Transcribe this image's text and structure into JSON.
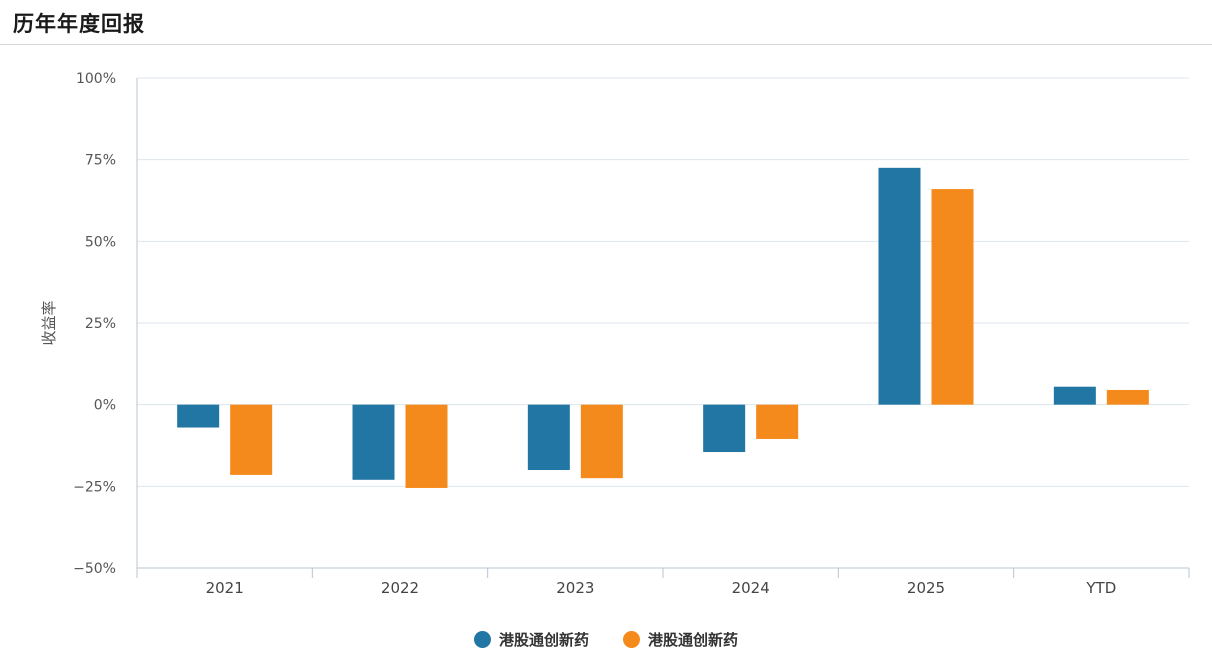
{
  "header": {
    "title": "历年年度回报"
  },
  "colors": {
    "series_1": "#2276a3",
    "series_2": "#f58a1c",
    "grid": "#dde5ec",
    "axis": "#b7c4d0"
  },
  "chart_data": {
    "type": "bar",
    "title": "历年年度回报",
    "xlabel": "",
    "ylabel": "收益率",
    "ylim": [
      -50,
      100
    ],
    "yticks": [
      -50,
      -25,
      0,
      25,
      50,
      75,
      100
    ],
    "ytick_labels": [
      "−50%",
      "−25%",
      "0%",
      "25%",
      "50%",
      "75%",
      "100%"
    ],
    "categories": [
      "2021",
      "2022",
      "2023",
      "2024",
      "2025",
      "YTD"
    ],
    "grid": true,
    "legend": "bottom-center",
    "series": [
      {
        "name": "港股通创新药",
        "color": "#2276a3",
        "values": [
          -7,
          -23,
          -20,
          -14.5,
          72.5,
          5.5
        ]
      },
      {
        "name": "港股通创新药",
        "color": "#f58a1c",
        "values": [
          -21.5,
          -25.5,
          -22.5,
          -10.5,
          66,
          4.5
        ]
      }
    ]
  }
}
